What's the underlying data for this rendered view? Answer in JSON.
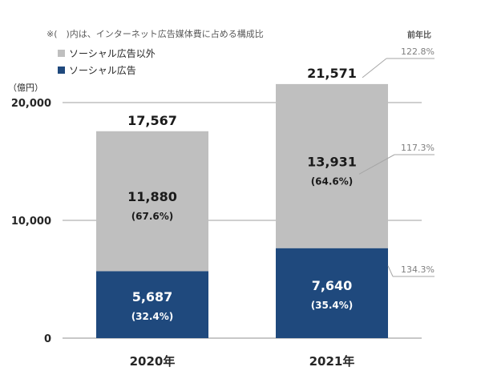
{
  "chart_data": {
    "type": "stacked-bar",
    "note": "※(　)内は、インターネット広告媒体費に占める構成比",
    "y_unit_label": "（億円）",
    "ylim": [
      0,
      20000
    ],
    "yticks": [
      0,
      10000,
      20000
    ],
    "ytick_labels": [
      "0",
      "10,000",
      "20,000"
    ],
    "grid": true,
    "legend_position": "top-left",
    "categories": [
      "2020年",
      "2021年"
    ],
    "totals": [
      17567,
      21571
    ],
    "total_labels": [
      "17,567",
      "21,571"
    ],
    "series": [
      {
        "name": "ソーシャル広告",
        "color": "#1f497d",
        "values": [
          5687,
          7640
        ],
        "value_labels": [
          "5,687",
          "7,640"
        ],
        "share_labels": [
          "(32.4%)",
          "(35.4%)"
        ]
      },
      {
        "name": "ソーシャル広告以外",
        "color": "#bfbfbf",
        "values": [
          11880,
          13931
        ],
        "value_labels": [
          "11,880",
          "13,931"
        ],
        "share_labels": [
          "(67.6%)",
          "(64.6%)"
        ]
      }
    ],
    "yoy_header": "前年比",
    "yoy": {
      "total": "122.8%",
      "other": "117.3%",
      "social": "134.3%"
    }
  }
}
